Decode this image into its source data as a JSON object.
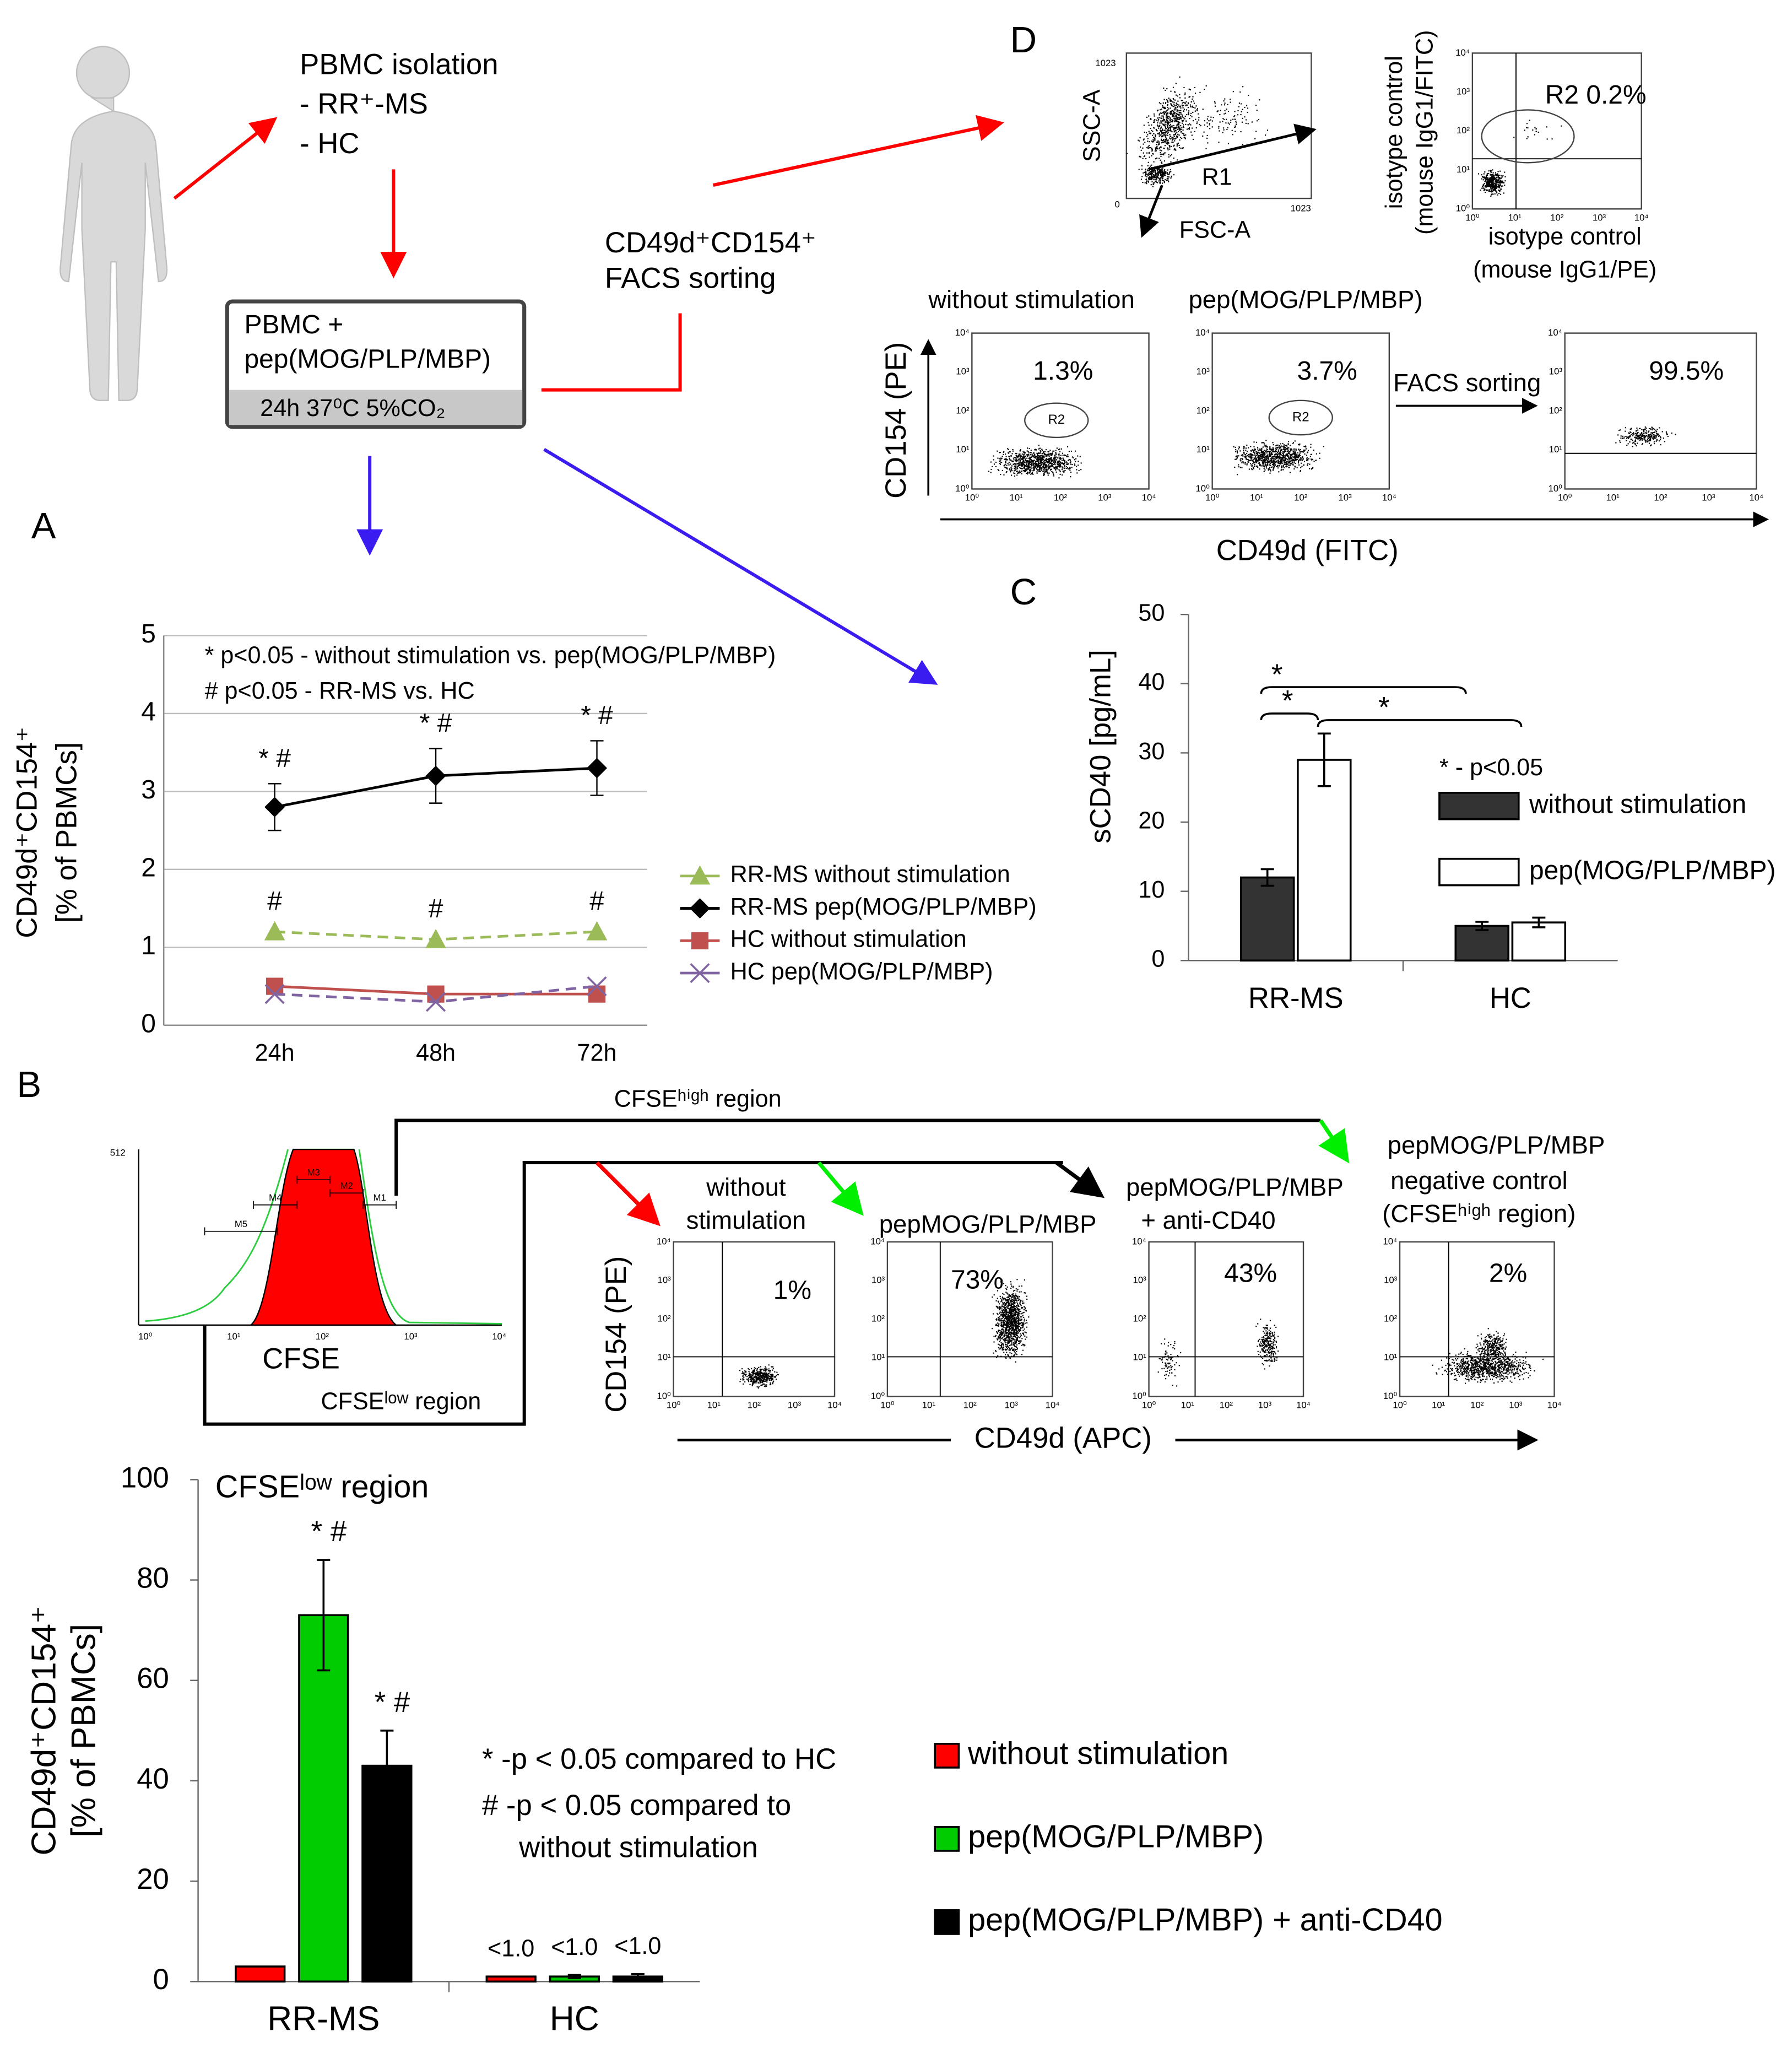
{
  "panel_labels": [
    "A",
    "B",
    "C",
    "D"
  ],
  "workflow": {
    "isolation": [
      "PBMC isolation",
      "- RR⁺-MS",
      "- HC"
    ],
    "box": [
      "PBMC +",
      "pep(MOG/PLP/MBP)"
    ],
    "conditions": "24h 37⁰C 5%CO₂",
    "sorting": [
      "CD49d⁺CD154⁺",
      "FACS sorting"
    ]
  },
  "log_ticks": [
    "10⁰",
    "10¹",
    "10²",
    "10³",
    "10⁴"
  ],
  "panel_d": {
    "ssc": "SSC-A",
    "fsc": "FSC-A",
    "r1": "R1",
    "scale_max": "1023",
    "scale_min": "0",
    "isotype_y": [
      "isotype control",
      "(mouse IgG1/FITC)"
    ],
    "isotype_x": [
      "isotype control",
      "(mouse IgG1/PE)"
    ],
    "r2_label": "R2 0.2%",
    "gates": [
      "without stimulation",
      "pep(MOG/PLP/MBP)"
    ],
    "percents": [
      "1.3%",
      "3.7%",
      "99.5%"
    ],
    "r2": "R2",
    "facs_sorting": "FACS sorting",
    "y_axis": "CD154 (PE)",
    "x_axis": "CD49d (FITC)"
  },
  "panel_b": {
    "histogram_max": "512",
    "gates": [
      "M1",
      "M2",
      "M3",
      "M4",
      "M5"
    ],
    "x_axis_hist": "CFSE",
    "low_region": "CFSEˡᵒʷ region",
    "high_region": "CFSEʰⁱᵍʰ region",
    "conditions": [
      [
        "without",
        "stimulation"
      ],
      [
        "pepMOG/PLP/MBP"
      ],
      [
        "pepMOG/PLP/MBP",
        "+ anti-CD40"
      ],
      [
        "pepMOG/PLP/MBP",
        "negative control",
        "(CFSEʰⁱᵍʰ region)"
      ]
    ],
    "percents": [
      "1%",
      "73%",
      "43%",
      "2%"
    ],
    "y_axis": "CD154 (PE)",
    "x_axis": "CD49d (APC)"
  },
  "chart_data": [
    {
      "type": "line",
      "y_label": [
        "CD49d⁺CD154⁺",
        "[% of PBMCs]"
      ],
      "categories": [
        "24h",
        "48h",
        "72h"
      ],
      "ylim": [
        0,
        5
      ],
      "yticks": [
        0,
        1,
        2,
        3,
        4,
        5
      ],
      "grid": true,
      "notes": [
        "* p<0.05 - without stimulation vs. pep(MOG/PLP/MBP)",
        "# p<0.05 - RR-MS vs. HC"
      ],
      "series": [
        {
          "name": "RR-MS without stimulation",
          "color": "#9bbb59",
          "marker": "triangle",
          "dash": true,
          "values": [
            1.2,
            1.1,
            1.2
          ],
          "point_labels": [
            "#",
            "#",
            "#"
          ]
        },
        {
          "name": "RR-MS pep(MOG/PLP/MBP)",
          "color": "#000000",
          "marker": "diamond",
          "dash": false,
          "values": [
            2.8,
            3.2,
            3.3
          ],
          "errors": [
            0.3,
            0.35,
            0.35
          ],
          "point_labels": [
            "* #",
            "* #",
            "* #"
          ]
        },
        {
          "name": "HC without stimulation",
          "color": "#c0504d",
          "marker": "square",
          "dash": false,
          "values": [
            0.5,
            0.4,
            0.4
          ]
        },
        {
          "name": "HC pep(MOG/PLP/MBP)",
          "color": "#8064a2",
          "marker": "x",
          "dash": true,
          "values": [
            0.4,
            0.3,
            0.5
          ]
        }
      ]
    },
    {
      "type": "bar",
      "y_label": [
        "sCD40 [pg/mL]"
      ],
      "categories": [
        "RR-MS",
        "HC"
      ],
      "ylim": [
        0,
        50
      ],
      "yticks": [
        0,
        10,
        20,
        30,
        40,
        50
      ],
      "grid": false,
      "notes": [
        "* - p<0.05"
      ],
      "significance": [
        "*",
        "*",
        "*"
      ],
      "series": [
        {
          "name": "without stimulation",
          "color": "#333333",
          "values": [
            12,
            5
          ],
          "errors": [
            1.2,
            0.6
          ]
        },
        {
          "name": "pep(MOG/PLP/MBP)",
          "color": "#ffffff",
          "values": [
            29,
            5.5
          ],
          "errors": [
            3.8,
            0.7
          ]
        }
      ]
    },
    {
      "type": "bar",
      "title": "CFSEˡᵒʷ region",
      "y_label": [
        "CD49d⁺CD154⁺",
        "[% of PBMCs]"
      ],
      "categories": [
        "RR-MS",
        "HC"
      ],
      "ylim": [
        0,
        100
      ],
      "yticks": [
        0,
        20,
        40,
        60,
        80,
        100
      ],
      "grid": false,
      "notes": [
        "* -p < 0.05 compared to HC",
        "#   -p < 0.05 compared to",
        "without stimulation"
      ],
      "series": [
        {
          "name": "without stimulation",
          "color": "#ff0000",
          "values": [
            3,
            1
          ],
          "value_labels": [
            null,
            "<1.0"
          ]
        },
        {
          "name": "pep(MOG/PLP/MBP)",
          "color": "#00cc00",
          "values": [
            73,
            1
          ],
          "errors": [
            11,
            0.3
          ],
          "value_labels": [
            null,
            "<1.0"
          ],
          "point_labels": [
            "* #",
            null
          ]
        },
        {
          "name": "pep(MOG/PLP/MBP) + anti-CD40",
          "color": "#000000",
          "values": [
            43,
            1
          ],
          "errors": [
            7,
            0.5
          ],
          "value_labels": [
            null,
            "<1.0"
          ],
          "point_labels": [
            "* #",
            null
          ]
        }
      ]
    }
  ]
}
